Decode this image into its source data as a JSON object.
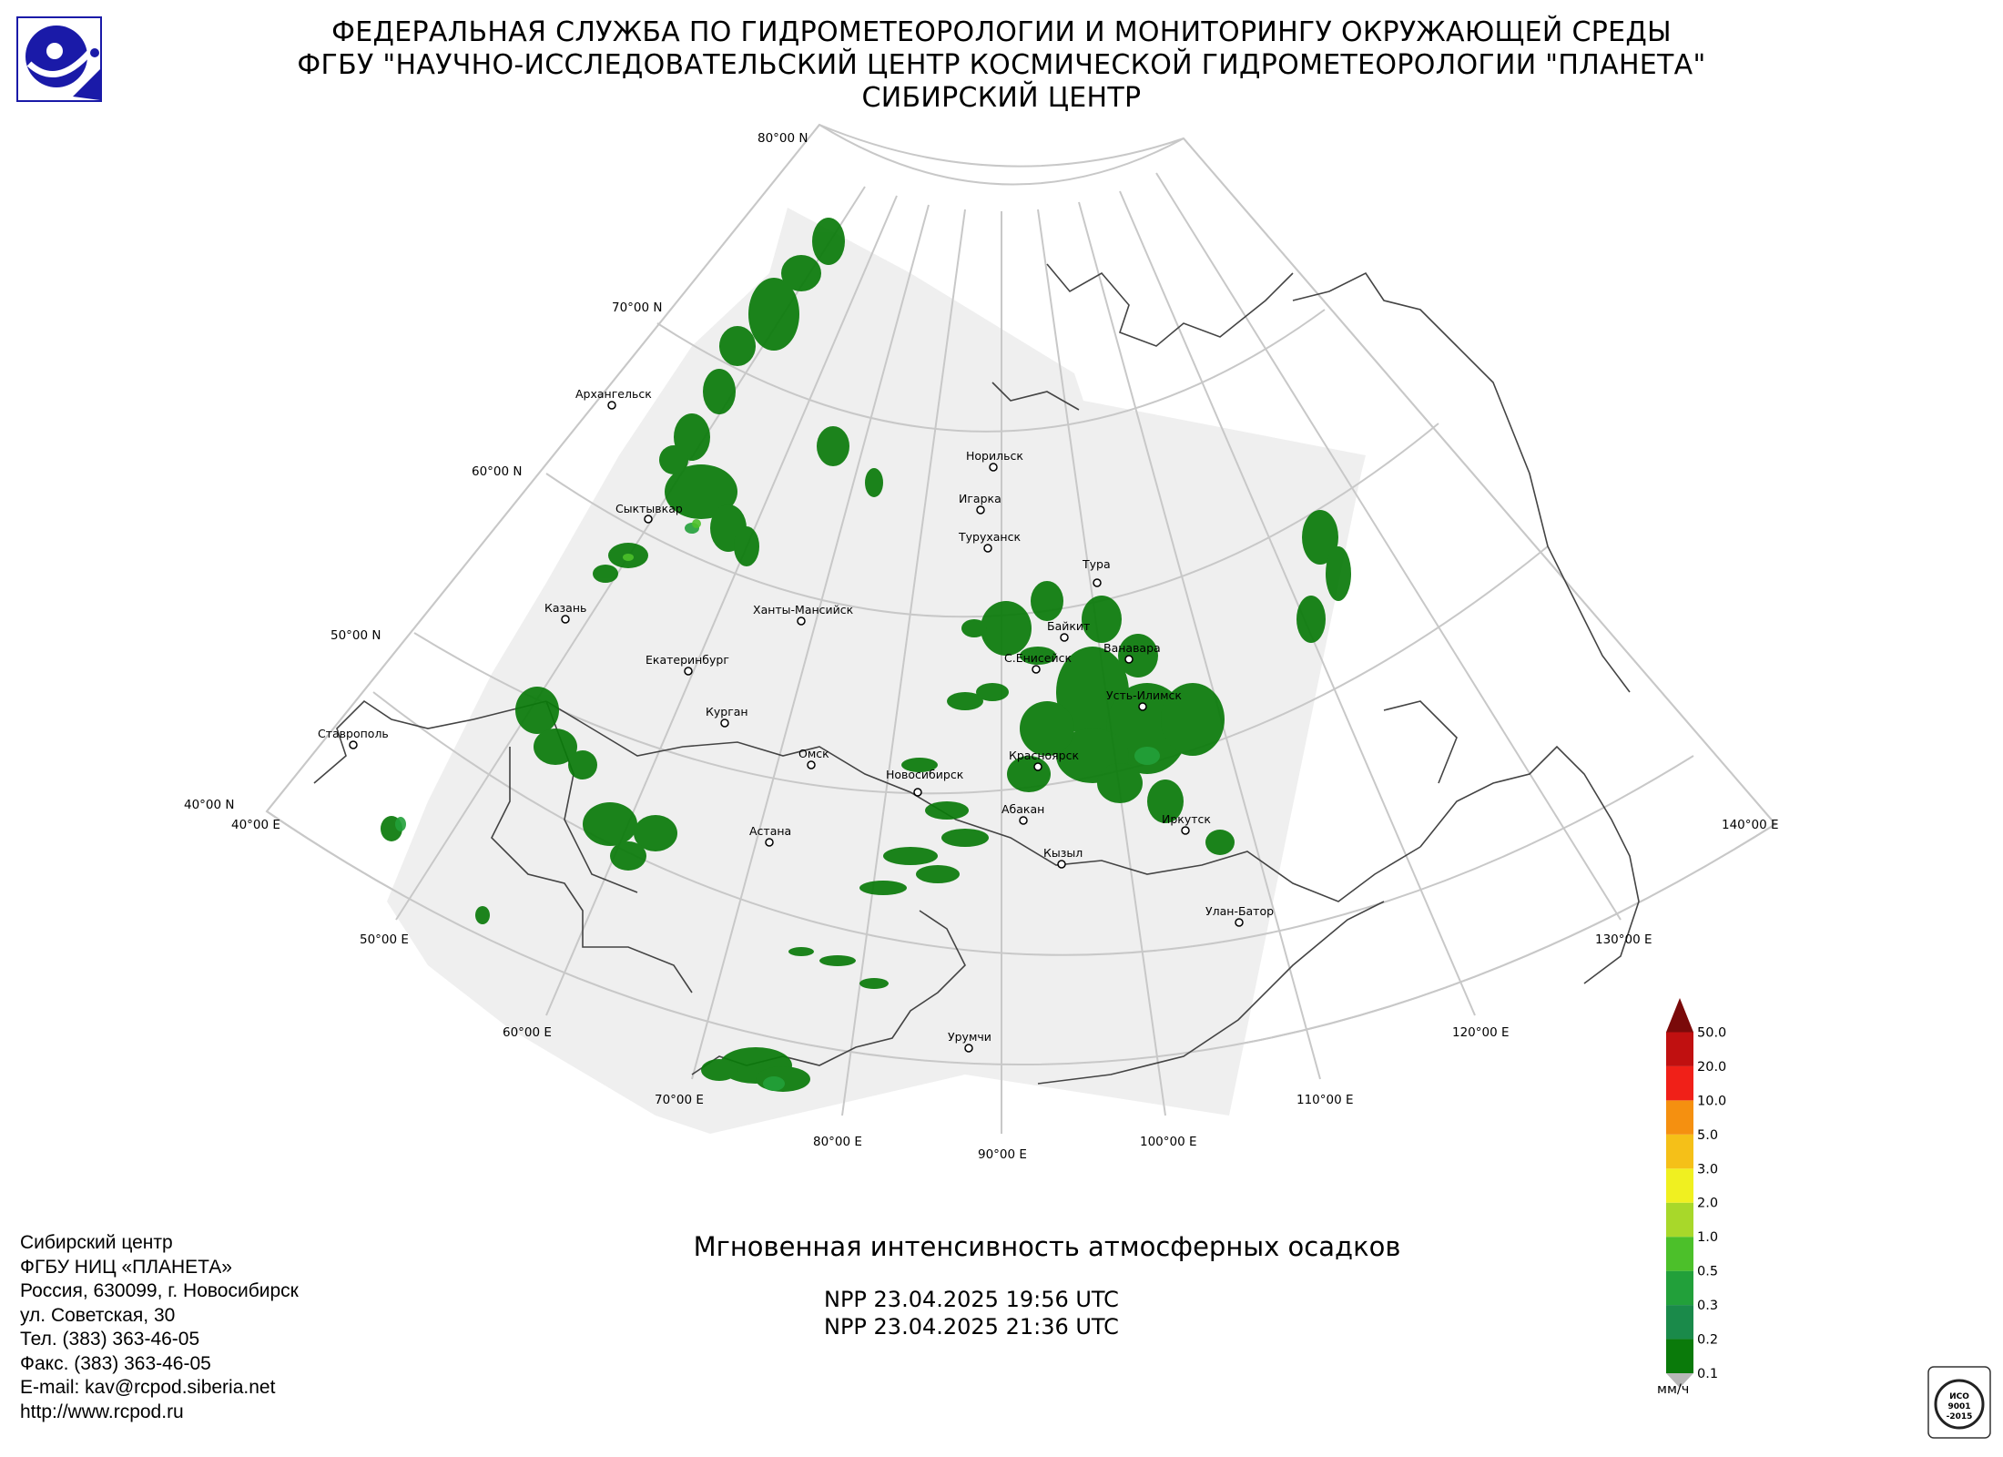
{
  "header": {
    "line1": "ФЕДЕРАЛЬНАЯ СЛУЖБА ПО ГИДРОМЕТЕОРОЛОГИИ И МОНИТОРИНГУ ОКРУЖАЮЩЕЙ СРЕДЫ",
    "line2": "ФГБУ \"НАУЧНО-ИССЛЕДОВАТЕЛЬСКИЙ ЦЕНТР КОСМИЧЕСКОЙ ГИДРОМЕТЕОРОЛОГИИ \"ПЛАНЕТА\"",
    "line3": "СИБИРСКИЙ ЦЕНТР"
  },
  "logo": {
    "icon": "planeta-logo-icon",
    "color": "#1a1aa8"
  },
  "map": {
    "land_color": "#ffffff",
    "coverage_color": "#efefef",
    "grid_color": "#c8c8c8",
    "border_color": "#444444",
    "latitude_labels": [
      "80°00 N",
      "70°00 N",
      "60°00 N",
      "50°00 N",
      "40°00 N"
    ],
    "longitude_labels": [
      "40°00 E",
      "50°00 E",
      "60°00 E",
      "70°00 E",
      "80°00 E",
      "90°00 E",
      "100°00 E",
      "110°00 E",
      "120°00 E",
      "130°00 E",
      "140°00 E"
    ],
    "cities": [
      "Архангельск",
      "Сыктывкар",
      "Казань",
      "Ставрополь",
      "Екатеринбург",
      "Ханты-Мансийск",
      "Курган",
      "Омск",
      "Астана",
      "Новосибирск",
      "Норильск",
      "Игарка",
      "Туруханск",
      "Тура",
      "Байкит",
      "Ванавара",
      "С.Енисейск",
      "Усть-Илимск",
      "Красноярск",
      "Абакан",
      "Кызыл",
      "Иркутск",
      "Улан-Батор",
      "Урумчи"
    ]
  },
  "product": {
    "title": "Мгновенная интенсивность атмосферных осадков",
    "pass1": "NPP 23.04.2025  19:56 UTC",
    "pass2": "NPP 23.04.2025  21:36 UTC"
  },
  "legend": {
    "unit": "мм/ч",
    "levels": [
      "0.1",
      "0.2",
      "0.3",
      "0.5",
      "1.0",
      "2.0",
      "3.0",
      "5.0",
      "10.0",
      "20.0",
      "50.0"
    ],
    "colors": [
      "#0a7a0a",
      "#1a8a4a",
      "#22a03a",
      "#4cc02a",
      "#a8d82a",
      "#f0f020",
      "#f5c018",
      "#f59010",
      "#f02018",
      "#c01010",
      "#7a0a0a"
    ]
  },
  "contacts": {
    "lines": [
      "Сибирский центр",
      "ФГБУ НИЦ «ПЛАНЕТА»",
      "Россия, 630099, г. Новосибирск",
      "ул. Советская, 30",
      "Тел. (383) 363-46-05",
      "Факс. (383) 363-46-05",
      "E-mail: kav@rcpod.siberia.net",
      "http://www.rcpod.ru"
    ]
  },
  "iso_badge": {
    "icon": "iso-certification-icon",
    "text1": "ИСО",
    "text2": "9001",
    "text3": "-2015"
  }
}
